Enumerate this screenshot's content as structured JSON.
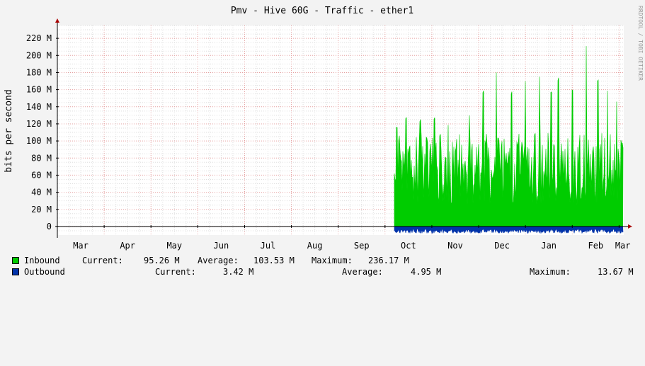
{
  "colors": {
    "canvas": "#ffffff",
    "background": "#f3f3f3",
    "grid_major": "#e6a0a0",
    "grid_minor": "#dddddd",
    "inbound": "#00cc00",
    "inbound_line": "#00a000",
    "outbound": "#0033aa",
    "axis": "#000000",
    "arrow": "#aa0000"
  },
  "chart_data": {
    "type": "area",
    "title": "Pmv - Hive 60G - Traffic - ether1",
    "ylabel": "bits per second",
    "watermark": "RRDTOOL / TOBI OETIKER",
    "ylim": [
      -10,
      235
    ],
    "yticks": [
      0,
      20,
      40,
      60,
      80,
      100,
      120,
      140,
      160,
      180,
      200,
      220
    ],
    "ytick_labels": [
      "0",
      "20 M",
      "40 M",
      "60 M",
      "80 M",
      "100 M",
      "120 M",
      "140 M",
      "160 M",
      "180 M",
      "200 M",
      "220 M"
    ],
    "xlim_months": [
      0,
      12.1
    ],
    "x_ticks": [
      {
        "label": "Mar",
        "pos": 0.5
      },
      {
        "label": "Apr",
        "pos": 1.5
      },
      {
        "label": "May",
        "pos": 2.5
      },
      {
        "label": "Jun",
        "pos": 3.5
      },
      {
        "label": "Jul",
        "pos": 4.5
      },
      {
        "label": "Aug",
        "pos": 5.5
      },
      {
        "label": "Sep",
        "pos": 6.5
      },
      {
        "label": "Oct",
        "pos": 7.5
      },
      {
        "label": "Nov",
        "pos": 8.5
      },
      {
        "label": "Dec",
        "pos": 9.5
      },
      {
        "label": "Jan",
        "pos": 10.5
      },
      {
        "label": "Feb",
        "pos": 11.5
      },
      {
        "label": "Mar",
        "pos": 12.08
      }
    ],
    "x_major_grid_months": [
      1,
      2,
      3,
      4,
      5,
      6,
      7,
      8,
      9,
      10,
      11,
      12
    ],
    "series": [
      {
        "name": "Inbound",
        "start_month": 7.2,
        "end_month": 12.08,
        "peaks": [
          {
            "month": 7.25,
            "value": 120
          },
          {
            "month": 7.45,
            "value": 130
          },
          {
            "month": 7.75,
            "value": 125
          },
          {
            "month": 8.05,
            "value": 130
          },
          {
            "month": 8.35,
            "value": 120
          },
          {
            "month": 8.8,
            "value": 130
          },
          {
            "month": 9.1,
            "value": 160
          },
          {
            "month": 9.38,
            "value": 185
          },
          {
            "month": 9.7,
            "value": 160
          },
          {
            "month": 10.0,
            "value": 175
          },
          {
            "month": 10.3,
            "value": 180
          },
          {
            "month": 10.55,
            "value": 160
          },
          {
            "month": 10.7,
            "value": 175
          },
          {
            "month": 11.0,
            "value": 160
          },
          {
            "month": 11.3,
            "value": 215
          },
          {
            "month": 11.55,
            "value": 175
          },
          {
            "month": 11.75,
            "value": 160
          },
          {
            "month": 11.95,
            "value": 150
          }
        ],
        "base_range": [
          25,
          65
        ],
        "typical_range": [
          60,
          110
        ]
      },
      {
        "name": "Outbound",
        "start_month": 7.2,
        "end_month": 12.08,
        "depth_range": [
          3,
          8
        ]
      }
    ]
  },
  "legend": {
    "inbound": {
      "label": "Inbound",
      "current_label": "Current:",
      "current": "95.26 M",
      "average_label": "Average:",
      "average": "103.53 M",
      "maximum_label": "Maximum:",
      "maximum": "236.17 M"
    },
    "outbound": {
      "label": "Outbound",
      "current_label": "Current:",
      "current": "3.42 M",
      "average_label": "Average:",
      "average": "4.95 M",
      "maximum_label": "Maximum:",
      "maximum": "13.67 M"
    }
  }
}
